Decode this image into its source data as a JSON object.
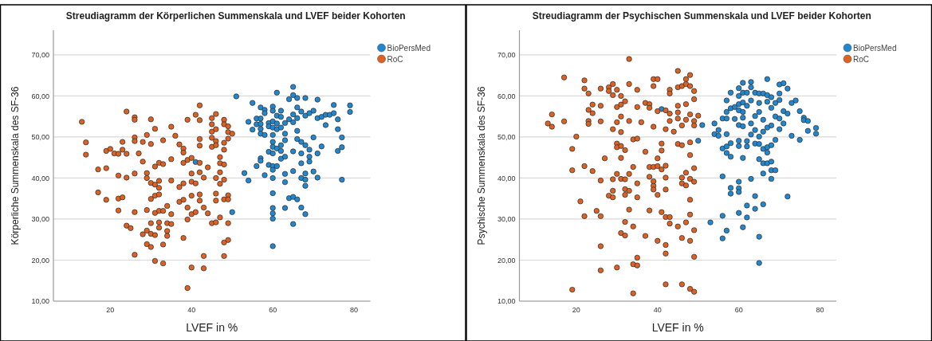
{
  "chart_data": [
    {
      "type": "scatter",
      "title": "Streudiagramm der Körperlichen Summenskala und LVEF beider Kohorten",
      "xlabel": "LVEF in %",
      "ylabel": "Körperliche Summenskala des SF-36",
      "xlim": [
        6,
        84
      ],
      "ylim": [
        10,
        76
      ],
      "xticks": [
        20,
        40,
        60,
        80
      ],
      "yticks": [
        {
          "value": 10,
          "label": "10,00"
        },
        {
          "value": 20,
          "label": "20,00"
        },
        {
          "value": 30,
          "label": "30,00"
        },
        {
          "value": 40,
          "label": "40,00"
        },
        {
          "value": 50,
          "label": "50,00"
        },
        {
          "value": 60,
          "label": "60,00"
        },
        {
          "value": 70,
          "label": "70,00"
        }
      ],
      "grid": "y",
      "legend": "top right",
      "marker": "circle",
      "series": [
        {
          "name": "BioPersMed",
          "color": "#1f88d2",
          "x": [
            41,
            50,
            51,
            53,
            54,
            54,
            55,
            55,
            56,
            56,
            56,
            57,
            57,
            57,
            57,
            57,
            57,
            57,
            58,
            58,
            58,
            58,
            59,
            59,
            59,
            59,
            60,
            60,
            60,
            60,
            60,
            60,
            60,
            60,
            60,
            60,
            60,
            60,
            60,
            60,
            60,
            60,
            61,
            61,
            61,
            61,
            61,
            61,
            62,
            62,
            62,
            62,
            62,
            62,
            63,
            63,
            63,
            63,
            63,
            63,
            63,
            64,
            64,
            64,
            65,
            65,
            65,
            65,
            65,
            65,
            65,
            65,
            66,
            66,
            66,
            66,
            66,
            66,
            67,
            67,
            67,
            67,
            67,
            67,
            68,
            68,
            68,
            68,
            68,
            68,
            68,
            69,
            69,
            69,
            69,
            70,
            70,
            70,
            71,
            71,
            71,
            71,
            72,
            72,
            73,
            73,
            74,
            75,
            75,
            76,
            76,
            76,
            77,
            77,
            77,
            79,
            79
          ],
          "values": [
            43.9,
            31.7,
            59.9,
            41.2,
            53.7,
            39.4,
            58.3,
            51.8,
            54.5,
            53.1,
            42.9,
            57.2,
            54.5,
            53.2,
            52,
            50.8,
            44.8,
            44.2,
            56.6,
            55.8,
            50.5,
            40.7,
            53.4,
            52.6,
            46.4,
            43.2,
            57.4,
            56.4,
            53.8,
            52.3,
            50.5,
            48.8,
            47.6,
            46,
            42.9,
            42,
            40,
            36.3,
            32.7,
            31.4,
            30.1,
            23.4,
            60.8,
            55.2,
            53.3,
            51.9,
            47.2,
            42.9,
            56.4,
            54.9,
            52.3,
            48,
            46.6,
            44.7,
            53.4,
            50.8,
            49.2,
            45.2,
            41,
            39,
            32.7,
            59.2,
            54.3,
            35.1,
            62.2,
            60.2,
            55.5,
            53.6,
            46.5,
            41.7,
            35.4,
            28.8,
            59.5,
            57.2,
            54.6,
            51.5,
            49.5,
            34.8,
            56.2,
            48.8,
            46,
            43.6,
            40,
            32.8,
            59.5,
            55.2,
            48,
            41.1,
            39.6,
            38.1,
            31.2,
            55.8,
            46.9,
            45.2,
            44,
            56.4,
            49.9,
            41.6,
            59.1,
            54.6,
            46,
            40.1,
            54.9,
            47.7,
            55.4,
            52.9,
            55.4,
            57.8,
            55.8,
            54.3,
            51.9,
            46.6,
            49.9,
            47.5,
            39.6,
            57.7,
            56.1
          ]
        },
        {
          "name": "RoC",
          "color": "#e0601f",
          "x": [
            13,
            14,
            14,
            17,
            17,
            19,
            19,
            19,
            20,
            21,
            22,
            22,
            22,
            22,
            23,
            23,
            23,
            24,
            24,
            24,
            24,
            25,
            26,
            26,
            26,
            26,
            26,
            26,
            26,
            27,
            28,
            28,
            28,
            29,
            29,
            29,
            29,
            29,
            29,
            30,
            30,
            30,
            30,
            30,
            30,
            30,
            31,
            31,
            31,
            31,
            31,
            31,
            31,
            32,
            32,
            32,
            32,
            32,
            32,
            32,
            33,
            33,
            33,
            33,
            33,
            34,
            34,
            34,
            34,
            35,
            35,
            35,
            35,
            35,
            36,
            37,
            37,
            37,
            38,
            38,
            38,
            38,
            38,
            38,
            39,
            39,
            39,
            39,
            39,
            40,
            40,
            40,
            40,
            40,
            40,
            41,
            41,
            41,
            42,
            42,
            42,
            42,
            42,
            42,
            42,
            42,
            43,
            43,
            43,
            43,
            44,
            44,
            45,
            45,
            45,
            45,
            45,
            45,
            46,
            46,
            46,
            46,
            46,
            46,
            46,
            46,
            47,
            47,
            47,
            47,
            47,
            48,
            48,
            48,
            48,
            48,
            48,
            48,
            48,
            48,
            49,
            49,
            49,
            49,
            49,
            49,
            49,
            50
          ],
          "values": [
            53.7,
            48.7,
            45.7,
            42.1,
            36.5,
            46.6,
            42.4,
            34.7,
            47.1,
            46,
            45.9,
            40.6,
            35,
            32.1,
            48.8,
            46.9,
            35.3,
            56.2,
            45.9,
            40.1,
            28.4,
            27.8,
            54.8,
            54.2,
            49.9,
            49,
            41.1,
            31.7,
            21.3,
            46,
            48.8,
            44,
            26.3,
            50.5,
            41.2,
            40,
            32.2,
            27.2,
            23.9,
            54.3,
            48.3,
            38.8,
            34.9,
            29,
            26.4,
            23.2,
            52,
            42.8,
            38.4,
            35.7,
            31.5,
            26.1,
            19.8,
            43.7,
            39.3,
            37.6,
            36,
            32,
            29.2,
            27.9,
            49.2,
            43.4,
            32,
            23.8,
            19.2,
            33.2,
            29,
            27.1,
            25.9,
            52.5,
            44.6,
            39.4,
            31.2,
            28.8,
            50.3,
            48.2,
            37.8,
            34.2,
            47.2,
            46.2,
            43.7,
            38.7,
            34.7,
            25.4,
            54.2,
            44.4,
            32.8,
            29.9,
            13.2,
            44.9,
            41.1,
            39.1,
            35.7,
            31.2,
            18.2,
            55.4,
            38.7,
            31.7,
            57.7,
            54.1,
            49.5,
            47.9,
            43.7,
            41.4,
            34.5,
            36,
            40.1,
            32.8,
            21,
            18,
            42.6,
            31.4,
            54.6,
            53.1,
            51.3,
            49.8,
            47.6,
            29,
            55.6,
            51.9,
            49,
            48,
            40,
            36.2,
            34.5,
            29.2,
            45.1,
            43.6,
            41.4,
            38.6,
            30.4,
            54.2,
            53.1,
            48.6,
            46.9,
            43.3,
            39.6,
            34.8,
            24.3,
            21,
            52.6,
            51.2,
            49.6,
            35.8,
            34.8,
            29,
            24.9,
            50.8
          ]
        }
      ]
    },
    {
      "type": "scatter",
      "title": "Streudiagramm der Psychischen Summenskala und LVEF beider Kohorten",
      "xlabel": "LVEF in %",
      "ylabel": "Psychische Summenskala des SF-36",
      "xlim": [
        6,
        84
      ],
      "ylim": [
        10,
        76
      ],
      "xticks": [
        20,
        40,
        60,
        80
      ],
      "yticks": [
        {
          "value": 10,
          "label": "10,00"
        },
        {
          "value": 20,
          "label": "20,00"
        },
        {
          "value": 30,
          "label": "30,00"
        },
        {
          "value": 40,
          "label": "40,00"
        },
        {
          "value": 50,
          "label": "50,00"
        },
        {
          "value": 60,
          "label": "60,00"
        },
        {
          "value": 70,
          "label": "70,00"
        }
      ],
      "grid": "y",
      "legend": "top right",
      "marker": "circle",
      "series": [
        {
          "name": "BioPersMed",
          "color": "#1f88d2",
          "x": [
            41,
            50,
            51,
            53,
            54,
            54,
            55,
            55,
            56,
            56,
            56,
            56,
            56,
            57,
            57,
            57,
            57,
            57,
            57,
            57,
            58,
            58,
            58,
            58,
            58,
            58,
            59,
            59,
            60,
            60,
            60,
            60,
            60,
            60,
            60,
            60,
            60,
            60,
            60,
            61,
            61,
            61,
            61,
            61,
            61,
            61,
            61,
            62,
            62,
            62,
            62,
            62,
            62,
            63,
            63,
            63,
            63,
            63,
            63,
            64,
            64,
            64,
            64,
            64,
            64,
            65,
            65,
            65,
            65,
            65,
            65,
            65,
            65,
            66,
            66,
            66,
            66,
            66,
            66,
            66,
            67,
            67,
            67,
            67,
            67,
            67,
            67,
            68,
            68,
            68,
            68,
            68,
            68,
            68,
            69,
            69,
            69,
            69,
            70,
            70,
            70,
            70,
            70,
            71,
            71,
            71,
            72,
            72,
            72,
            73,
            73,
            74,
            75,
            75,
            76,
            76,
            77,
            77,
            79,
            79
          ],
          "values": [
            56.8,
            49.1,
            52.9,
            29.2,
            50.7,
            53.3,
            51.7,
            50.3,
            54.5,
            47.2,
            40.4,
            30.8,
            25.3,
            58.9,
            56.1,
            54.5,
            50.7,
            47.7,
            46.1,
            27.2,
            60.8,
            57,
            48.5,
            45.2,
            37.6,
            36.2,
            57.3,
            54.4,
            61.9,
            60,
            58,
            56.5,
            52.9,
            49.1,
            47.8,
            39.1,
            37.5,
            36.6,
            31.5,
            63.2,
            60.8,
            58.4,
            56.1,
            54.7,
            52.6,
            44.9,
            28,
            60.8,
            57.6,
            49,
            47.7,
            33.3,
            30.4,
            63.4,
            62.1,
            58.9,
            53.3,
            50.6,
            39.8,
            60.8,
            55.1,
            51.7,
            48.4,
            35.6,
            32.5,
            60.6,
            58.3,
            56.1,
            50.1,
            48.3,
            44.6,
            25.7,
            19.3,
            60.6,
            54.2,
            51.3,
            47.1,
            43.6,
            41.1,
            33.6,
            64.1,
            60.2,
            58.6,
            52.3,
            47.5,
            46.2,
            43.6,
            59.7,
            57.1,
            52.8,
            48,
            44,
            41.9,
            39.8,
            58.3,
            55,
            49.3,
            41.9,
            62.8,
            60.6,
            59,
            54.5,
            51.9,
            63.1,
            56.3,
            53.3,
            61.8,
            55.7,
            35.5,
            58.3,
            50.3,
            58.9,
            56.3,
            49.3,
            54.7,
            54.1,
            53.9,
            51.5,
            52.2,
            50.8
          ]
        },
        {
          "name": "RoC",
          "color": "#e0601f",
          "x": [
            17,
            13,
            14,
            14,
            17,
            19,
            19,
            19,
            20,
            21,
            22,
            22,
            22,
            22,
            23,
            23,
            23,
            23,
            24,
            24,
            24,
            25,
            26,
            26,
            26,
            26,
            26,
            26,
            26,
            27,
            28,
            28,
            28,
            29,
            29,
            29,
            29,
            29,
            29,
            30,
            30,
            30,
            30,
            30,
            30,
            30,
            31,
            31,
            31,
            31,
            31,
            31,
            31,
            31,
            32,
            32,
            32,
            32,
            32,
            32,
            32,
            33,
            33,
            33,
            33,
            33,
            33,
            34,
            34,
            34,
            34,
            34,
            35,
            35,
            35,
            35,
            35,
            35,
            35,
            36,
            37,
            37,
            37,
            38,
            38,
            38,
            38,
            38,
            39,
            39,
            39,
            39,
            39,
            39,
            39,
            40,
            40,
            40,
            40,
            40,
            40,
            41,
            41,
            41,
            41,
            42,
            42,
            42,
            42,
            42,
            42,
            42,
            42,
            42,
            43,
            43,
            43,
            43,
            43,
            43,
            44,
            45,
            45,
            45,
            45,
            45,
            45,
            45,
            46,
            46,
            46,
            46,
            46,
            46,
            46,
            47,
            47,
            47,
            47,
            47,
            47,
            47,
            48,
            48,
            48,
            48,
            48,
            48,
            48,
            48,
            48,
            48,
            49,
            49,
            49,
            49,
            49,
            49,
            49,
            49,
            49,
            50
          ],
          "values": [
            64.5,
            53.3,
            55.5,
            52.5,
            53.8,
            47.1,
            41.9,
            12.8,
            50.1,
            34.3,
            63.8,
            61.8,
            42.9,
            30.7,
            60.6,
            56.6,
            53.9,
            53.2,
            57.9,
            55.8,
            41.7,
            32,
            61.8,
            57.6,
            53.8,
            39.4,
            30.7,
            23.4,
            17.5,
            44.8,
            62.1,
            61.2,
            35.7,
            62.9,
            60.2,
            51.9,
            39.7,
            36.9,
            35.3,
            61.5,
            57.3,
            53.6,
            48.4,
            47.5,
            41,
            18.2,
            60,
            57.9,
            55,
            51.2,
            47.8,
            44.9,
            39.8,
            26.6,
            58.7,
            46.8,
            39.7,
            37.3,
            35.9,
            29.3,
            26,
            69,
            62.9,
            53.9,
            41,
            36.9,
            32.3,
            49.4,
            42.7,
            28.2,
            19,
            11.9,
            61.5,
            57.3,
            49.6,
            38.7,
            35.3,
            20.6,
            18.7,
            53.6,
            58.3,
            46.4,
            25.9,
            58,
            57.1,
            42.7,
            40.3,
            32.1,
            62.4,
            64.1,
            52.5,
            42.7,
            39.2,
            38.1,
            37.2,
            64.1,
            56.3,
            44.8,
            42.9,
            35.9,
            24.7,
            48.4,
            46.7,
            42.1,
            31.7,
            56.5,
            51.9,
            43,
            40.1,
            37.2,
            30.5,
            23.7,
            21.6,
            14.1,
            61.5,
            60.6,
            55.7,
            53.9,
            30.5,
            28.9,
            51.3,
            66.1,
            62.1,
            57.6,
            56,
            54.5,
            48.3,
            28.2,
            62.4,
            52.8,
            48,
            40.1,
            38.7,
            25.4,
            14.1,
            64.1,
            62.9,
            58,
            54.2,
            41.3,
            38.2,
            29.2,
            65.1,
            62.4,
            55.5,
            48.7,
            45.6,
            39.8,
            34.7,
            31.1,
            24.7,
            13,
            61.2,
            59.2,
            53.9,
            52.8,
            42.4,
            39.1,
            27.3,
            20.8,
            12.3,
            55.2
          ]
        }
      ]
    }
  ]
}
